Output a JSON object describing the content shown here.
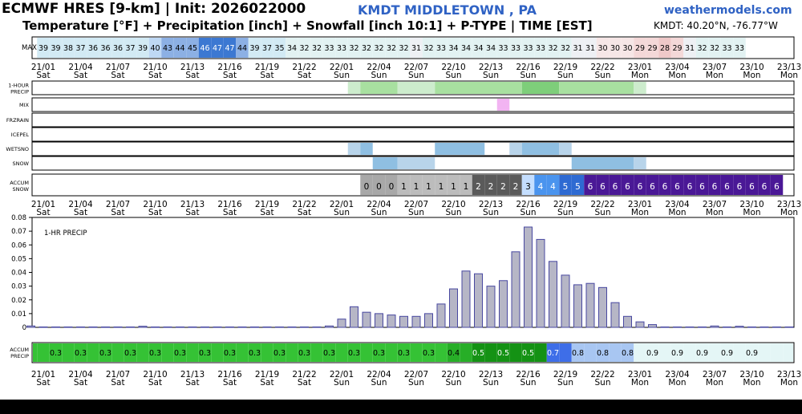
{
  "header": {
    "title": "ECMWF HRES [9-km] | Init: 2026022000",
    "subtitle": "Temperature [°F] + Precipitation [inch] + Snowfall [inch 10:1] + P-TYPE | TIME [EST]",
    "station": "KMDT MIDDLETOWN     , PA",
    "brand": "weathermodels.com",
    "coords": "KMDT: 40.20°N, -76.77°W"
  },
  "colors": {
    "precip": "#a8e0a0",
    "precip_heavy": "#7ece7a",
    "mix": "#f2b4f2",
    "wetsnow": "#b8d4ea",
    "wetsnow_heavy": "#8fbfe2",
    "bar_fill": "#b6b6c6",
    "bar_stroke": "#4848a0",
    "accent": "#2f62c4"
  },
  "chart_data": {
    "type": "bar",
    "ticks": [
      {
        "time": "21/01",
        "day": "Sat"
      },
      {
        "time": "21/04",
        "day": "Sat"
      },
      {
        "time": "21/07",
        "day": "Sat"
      },
      {
        "time": "21/10",
        "day": "Sat"
      },
      {
        "time": "21/13",
        "day": "Sat"
      },
      {
        "time": "21/16",
        "day": "Sat"
      },
      {
        "time": "21/19",
        "day": "Sat"
      },
      {
        "time": "21/22",
        "day": "Sat"
      },
      {
        "time": "22/01",
        "day": "Sun"
      },
      {
        "time": "22/04",
        "day": "Sun"
      },
      {
        "time": "22/07",
        "day": "Sun"
      },
      {
        "time": "22/10",
        "day": "Sun"
      },
      {
        "time": "22/13",
        "day": "Sun"
      },
      {
        "time": "22/16",
        "day": "Sun"
      },
      {
        "time": "22/19",
        "day": "Sun"
      },
      {
        "time": "22/22",
        "day": "Sun"
      },
      {
        "time": "23/01",
        "day": "Mon"
      },
      {
        "time": "23/04",
        "day": "Mon"
      },
      {
        "time": "23/07",
        "day": "Mon"
      },
      {
        "time": "23/10",
        "day": "Mon"
      },
      {
        "time": "23/13",
        "day": "Mon"
      }
    ],
    "hours_start": "21/00",
    "max_temp": {
      "label": "MAX",
      "values": [
        39,
        39,
        38,
        37,
        36,
        36,
        36,
        37,
        39,
        40,
        43,
        44,
        45,
        46,
        47,
        47,
        44,
        39,
        37,
        35,
        34,
        32,
        32,
        33,
        33,
        32,
        32,
        32,
        32,
        32,
        31,
        32,
        33,
        34,
        34,
        34,
        34,
        33,
        33,
        33,
        33,
        32,
        32,
        31,
        31,
        30,
        30,
        30,
        29,
        29,
        28,
        29,
        31,
        32,
        32,
        33,
        33
      ]
    },
    "ptype_rows": [
      {
        "name": "1-HOUR PRECIP",
        "label_l1": "1-HOUR",
        "label_l2": "PRECIP",
        "segments": [
          {
            "start": 26,
            "end": 27,
            "level": 0
          },
          {
            "start": 27,
            "end": 30,
            "level": 1
          },
          {
            "start": 30,
            "end": 33,
            "level": 0
          },
          {
            "start": 33,
            "end": 40,
            "level": 1
          },
          {
            "start": 40,
            "end": 43,
            "level": 2
          },
          {
            "start": 43,
            "end": 49,
            "level": 1
          },
          {
            "start": 49,
            "end": 50,
            "level": 0
          }
        ]
      },
      {
        "name": "MIX",
        "label_l1": "MIX",
        "label_l2": "",
        "segments": [
          {
            "start": 38,
            "end": 39,
            "level": 1
          }
        ]
      },
      {
        "name": "FRZRAIN",
        "label_l1": "FRZRAIN",
        "label_l2": "",
        "segments": []
      },
      {
        "name": "ICEPEL",
        "label_l1": "ICEPEL",
        "label_l2": "",
        "segments": []
      },
      {
        "name": "WETSNO",
        "label_l1": "WETSNO",
        "label_l2": "",
        "segments": [
          {
            "start": 26,
            "end": 27,
            "level": 0
          },
          {
            "start": 27,
            "end": 28,
            "level": 1
          },
          {
            "start": 33,
            "end": 37,
            "level": 1
          },
          {
            "start": 39,
            "end": 40,
            "level": 0
          },
          {
            "start": 40,
            "end": 43,
            "level": 1
          },
          {
            "start": 43,
            "end": 44,
            "level": 0
          }
        ]
      },
      {
        "name": "SNOW",
        "label_l1": "SNOW",
        "label_l2": "",
        "segments": [
          {
            "start": 28,
            "end": 30,
            "level": 1
          },
          {
            "start": 30,
            "end": 33,
            "level": 0
          },
          {
            "start": 44,
            "end": 49,
            "level": 1
          },
          {
            "start": 49,
            "end": 50,
            "level": 0
          }
        ]
      }
    ],
    "accum_snow": {
      "label_l1": "ACCUM",
      "label_l2": "SNOW",
      "start_hour": 27,
      "values": [
        0,
        0,
        0,
        1,
        1,
        1,
        1,
        1,
        1,
        2,
        2,
        2,
        2,
        3,
        4,
        4,
        5,
        5,
        6,
        6,
        6,
        6,
        6,
        6,
        6,
        6,
        6,
        6,
        6,
        6,
        6,
        6,
        6,
        6
      ],
      "colors": {
        "0": "#a8a8a8",
        "1": "#bcbcbc",
        "2": "#5a5a5a",
        "3": "#c4deff",
        "4": "#4a94ee",
        "5": "#2e6ad2",
        "6": "#4a1896"
      }
    },
    "hourly_precip": {
      "label": "1-HR PRECIP",
      "ylim": [
        0,
        0.08
      ],
      "yticks": [
        0,
        0.01,
        0.02,
        0.03,
        0.04,
        0.05,
        0.06,
        0.07,
        0.08
      ],
      "values": [
        0.001,
        0.0003,
        0.0003,
        0.0003,
        0.0003,
        0.0003,
        0.0003,
        0.0003,
        0.0003,
        0.0008,
        0.0003,
        0.0003,
        0.0003,
        0.0003,
        0.0003,
        0.0003,
        0.0003,
        0.0003,
        0.0003,
        0.0003,
        0.0003,
        0.0003,
        0.0003,
        0.0003,
        0.001,
        0.006,
        0.015,
        0.011,
        0.01,
        0.009,
        0.008,
        0.008,
        0.01,
        0.017,
        0.028,
        0.041,
        0.039,
        0.03,
        0.034,
        0.055,
        0.073,
        0.064,
        0.048,
        0.038,
        0.031,
        0.032,
        0.029,
        0.018,
        0.008,
        0.004,
        0.002,
        0.0003,
        0.0003,
        0.0003,
        0.0003,
        0.001,
        0.0003,
        0.0008,
        0.0003,
        0.0003,
        0.0003,
        0.0003
      ]
    },
    "accum_precip": {
      "label_l1": "ACCUM",
      "label_l2": "PRECIP",
      "values": [
        0.3,
        0.3,
        0.3,
        0.3,
        0.3,
        0.3,
        0.3,
        0.3,
        0.3,
        0.3,
        0.3,
        0.3,
        0.3,
        0.3,
        0.3,
        0.3,
        0.3,
        0.3,
        0.3,
        0.3,
        0.3,
        0.3,
        0.3,
        0.3,
        0.3,
        0.3,
        0.3,
        0.3,
        0.3,
        0.3,
        0.3,
        0.3,
        0.3,
        0.3,
        0.4,
        0.4,
        0.5,
        0.5,
        0.5,
        0.5,
        0.5,
        0.5,
        0.7,
        0.7,
        0.8,
        0.8,
        0.8,
        0.8,
        0.8,
        0.9,
        0.9,
        0.9,
        0.9,
        0.9,
        0.9,
        0.9,
        0.9,
        0.9,
        0.9,
        0.9,
        0.9,
        0.9
      ],
      "colors": {
        "0.3": "#35c235",
        "0.4": "#27ae27",
        "0.5": "#149214",
        "0.7": "#3e6ee8",
        "0.8": "#a8c6f2",
        "0.9": "#e4f6f6"
      }
    }
  }
}
